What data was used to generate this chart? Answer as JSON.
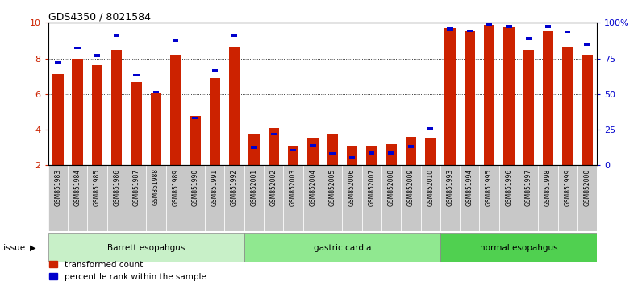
{
  "title": "GDS4350 / 8021584",
  "samples": [
    "GSM851983",
    "GSM851984",
    "GSM851985",
    "GSM851986",
    "GSM851987",
    "GSM851988",
    "GSM851989",
    "GSM851990",
    "GSM851991",
    "GSM851992",
    "GSM852001",
    "GSM852002",
    "GSM852003",
    "GSM852004",
    "GSM852005",
    "GSM852006",
    "GSM852007",
    "GSM852008",
    "GSM852009",
    "GSM852010",
    "GSM851993",
    "GSM851994",
    "GSM851995",
    "GSM851996",
    "GSM851997",
    "GSM851998",
    "GSM851999",
    "GSM852000"
  ],
  "red_values": [
    7.1,
    8.0,
    7.6,
    8.5,
    6.65,
    6.1,
    8.2,
    4.75,
    6.9,
    8.65,
    3.75,
    4.1,
    3.1,
    3.5,
    3.75,
    3.1,
    3.1,
    3.2,
    3.6,
    3.55,
    9.7,
    9.5,
    9.9,
    9.8,
    8.5,
    9.5,
    8.6,
    8.2
  ],
  "blue_values": [
    7.75,
    8.6,
    8.15,
    9.3,
    7.05,
    6.1,
    9.0,
    4.65,
    7.3,
    9.3,
    3.0,
    3.75,
    2.85,
    3.1,
    2.65,
    2.45,
    2.7,
    2.7,
    3.05,
    4.05,
    9.65,
    9.55,
    9.9,
    9.8,
    9.1,
    9.8,
    9.5,
    8.8
  ],
  "groups": [
    {
      "label": "Barrett esopahgus",
      "start": 0,
      "end": 10,
      "color": "#c8f0c8"
    },
    {
      "label": "gastric cardia",
      "start": 10,
      "end": 20,
      "color": "#90e890"
    },
    {
      "label": "normal esopahgus",
      "start": 20,
      "end": 28,
      "color": "#50d050"
    }
  ],
  "ylim": [
    2,
    10
  ],
  "y_ticks_left": [
    2,
    4,
    6,
    8,
    10
  ],
  "y_ticks_right_vals": [
    0,
    25,
    50,
    75,
    100
  ],
  "y_ticks_right_labels": [
    "0",
    "25",
    "50",
    "75",
    "100%"
  ],
  "red_color": "#cc2200",
  "blue_color": "#0000cc",
  "bar_width": 0.55,
  "label_bg_color": "#c8c8c8",
  "legend_items": [
    "transformed count",
    "percentile rank within the sample"
  ]
}
